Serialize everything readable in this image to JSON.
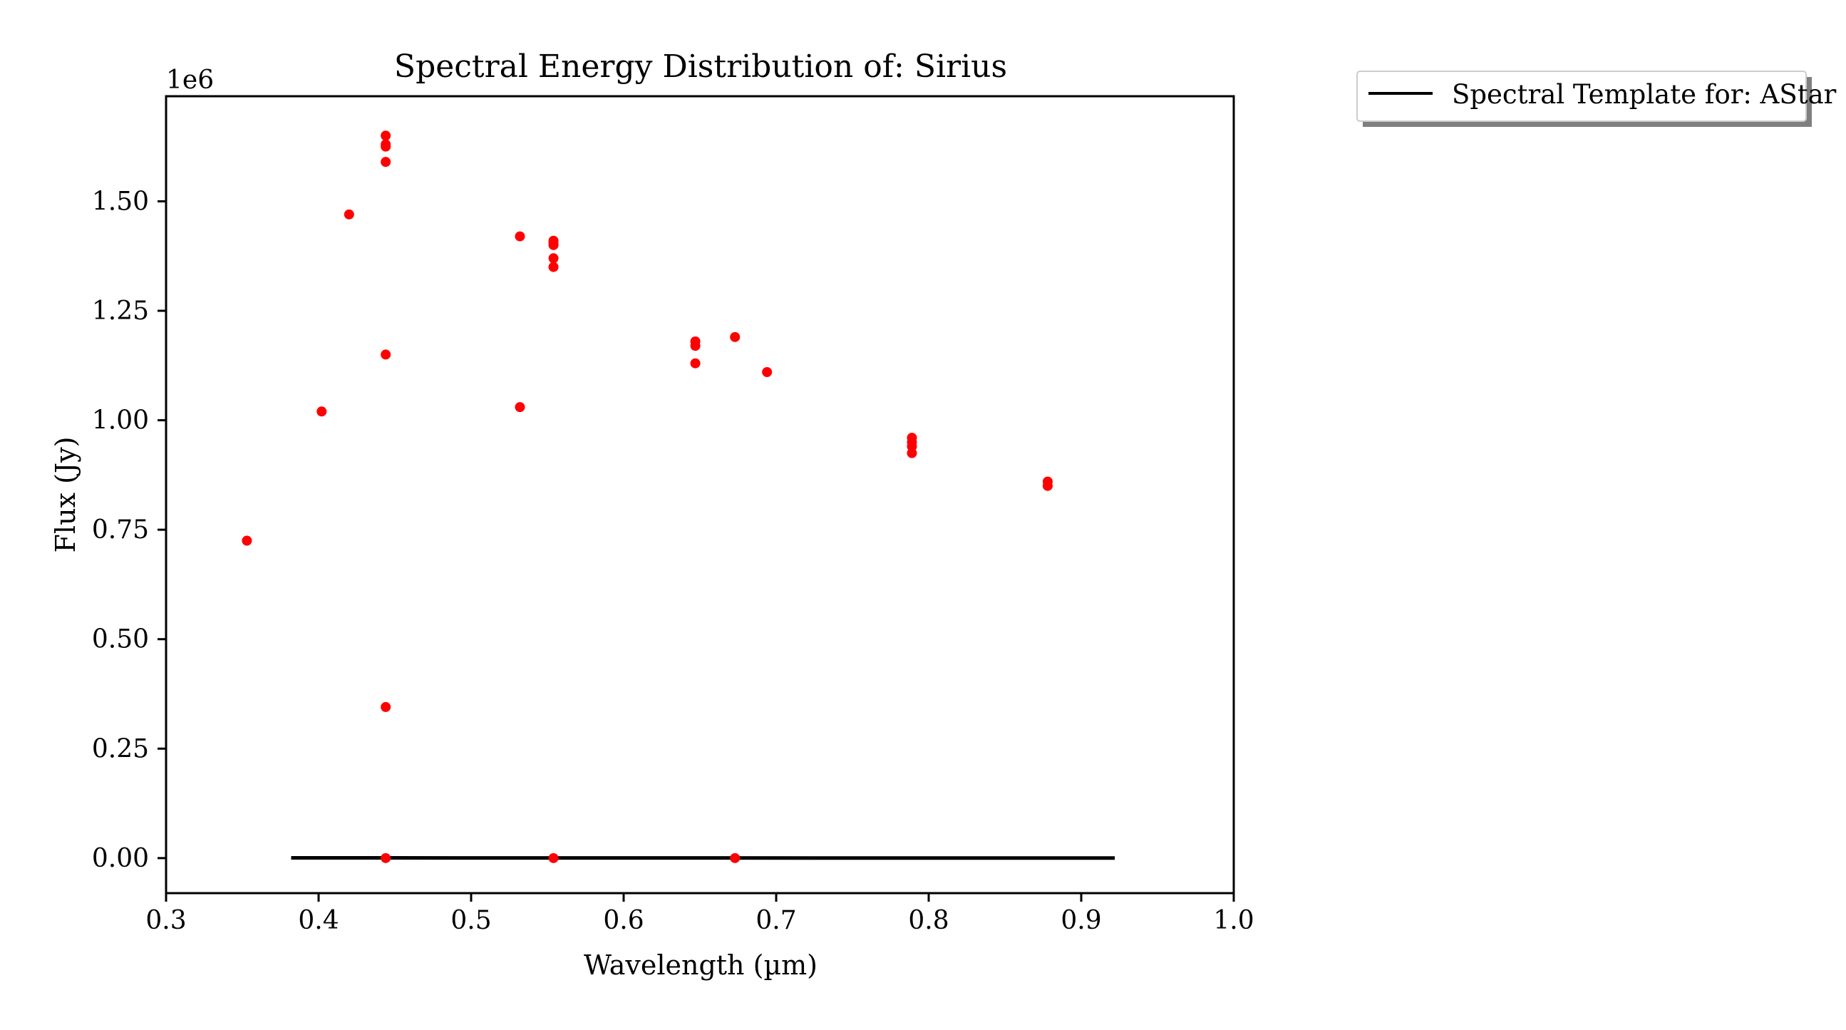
{
  "chart_data": {
    "type": "scatter",
    "title": "Spectral Energy Distribution of: Sirius",
    "xlabel": "Wavelength (µm)",
    "ylabel": "Flux (Jy)",
    "y_offset_label": "1e6",
    "xlim": [
      0.3,
      1.0
    ],
    "ylim": [
      -0.08,
      1.74
    ],
    "y_scale_factor": 1000000,
    "x_ticks": [
      0.3,
      0.4,
      0.5,
      0.6,
      0.7,
      0.8,
      0.9,
      1.0
    ],
    "x_tick_labels": [
      "0.3",
      "0.4",
      "0.5",
      "0.6",
      "0.7",
      "0.8",
      "0.9",
      "1.0"
    ],
    "y_ticks": [
      0.0,
      0.25,
      0.5,
      0.75,
      1.0,
      1.25,
      1.5
    ],
    "y_tick_labels": [
      "0.00",
      "0.25",
      "0.50",
      "0.75",
      "1.00",
      "1.25",
      "1.50"
    ],
    "grid": false,
    "legend_placement": "outside-top-right",
    "legend": [
      {
        "label": "Spectral Template for: AStar",
        "color": "#000000",
        "kind": "line"
      }
    ],
    "series": [
      {
        "kind": "scatter",
        "color": "#ff0000",
        "x": [
          0.353,
          0.402,
          0.42,
          0.444,
          0.444,
          0.444,
          0.444,
          0.444,
          0.444,
          0.532,
          0.532,
          0.554,
          0.554,
          0.554,
          0.554,
          0.554,
          0.647,
          0.647,
          0.647,
          0.673,
          0.694,
          0.789,
          0.789,
          0.789,
          0.789,
          0.878,
          0.878,
          0.444,
          0.554,
          0.673
        ],
        "y": [
          0.725,
          1.02,
          1.47,
          1.65,
          1.63,
          1.59,
          1.15,
          0.345,
          1.625,
          1.42,
          1.03,
          1.41,
          1.4,
          1.37,
          1.35,
          1.405,
          1.18,
          1.17,
          1.13,
          1.19,
          1.11,
          0.96,
          0.95,
          0.94,
          0.925,
          0.86,
          0.85,
          0.0,
          0.0,
          0.0
        ]
      },
      {
        "kind": "line",
        "name": "Spectral Template for: AStar",
        "color": "#000000",
        "x": [
          0.382,
          0.45,
          0.55,
          0.65,
          0.75,
          0.85,
          0.922
        ],
        "y": [
          0.0006,
          0.0005,
          0.0004,
          0.0003,
          0.00025,
          0.0002,
          0.00018
        ]
      }
    ]
  }
}
